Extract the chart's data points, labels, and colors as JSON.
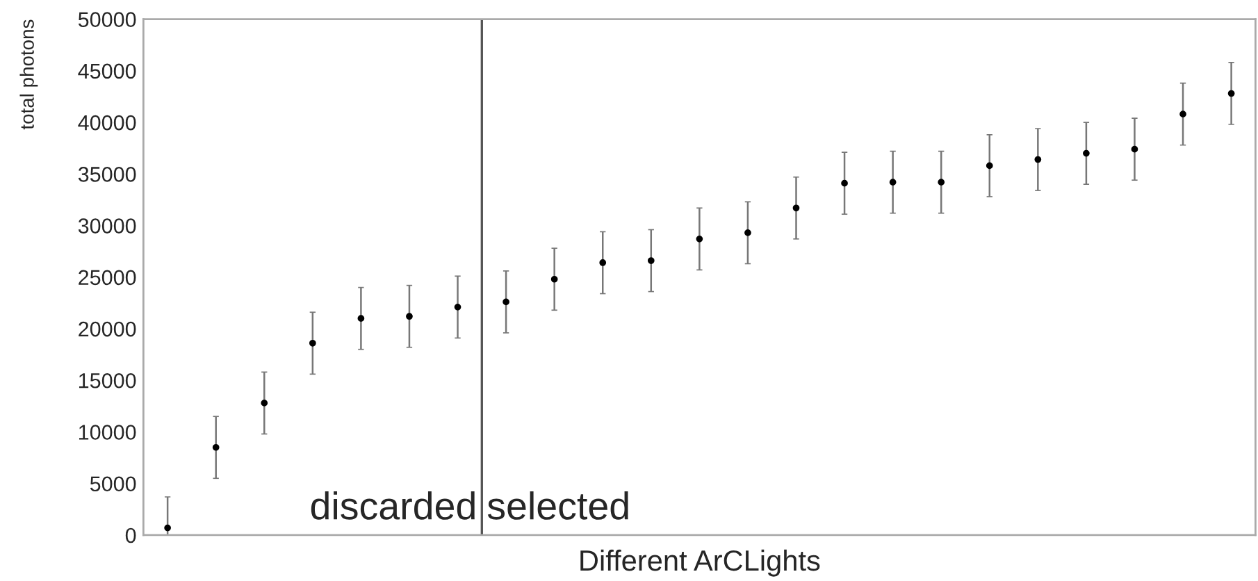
{
  "chart_data": {
    "type": "scatter",
    "xlabel": "Different ArCLights",
    "ylabel": "total photons",
    "categories": [
      null,
      null,
      null,
      null,
      null,
      null,
      null,
      null,
      null,
      null,
      null,
      null,
      null,
      null,
      null,
      null,
      null,
      null,
      null,
      null,
      null,
      null,
      null
    ],
    "series": [
      {
        "color": "#000000",
        "values": [
          700,
          8500,
          12800,
          18600,
          21000,
          21200,
          22100,
          22600,
          24800,
          26400,
          26600,
          28700,
          29300,
          31700,
          34100,
          34200,
          34200,
          35800,
          36400,
          37000,
          37400,
          40800,
          42800
        ],
        "errors": [
          3000,
          3000,
          3000,
          3000,
          3000,
          3000,
          3000,
          3000,
          3000,
          3000,
          3000,
          3000,
          3000,
          3000,
          3000,
          3000,
          3000,
          3000,
          3000,
          3000,
          3000,
          3000,
          3000
        ]
      }
    ],
    "ylim": [
      0,
      50000
    ],
    "yticks": [
      0,
      5000,
      10000,
      15000,
      20000,
      25000,
      30000,
      35000,
      40000,
      45000,
      50000
    ],
    "annotations": [
      "discarded",
      "selected"
    ],
    "tick_labels": "y",
    "marker": "circle",
    "grid": false,
    "legend": false
  }
}
